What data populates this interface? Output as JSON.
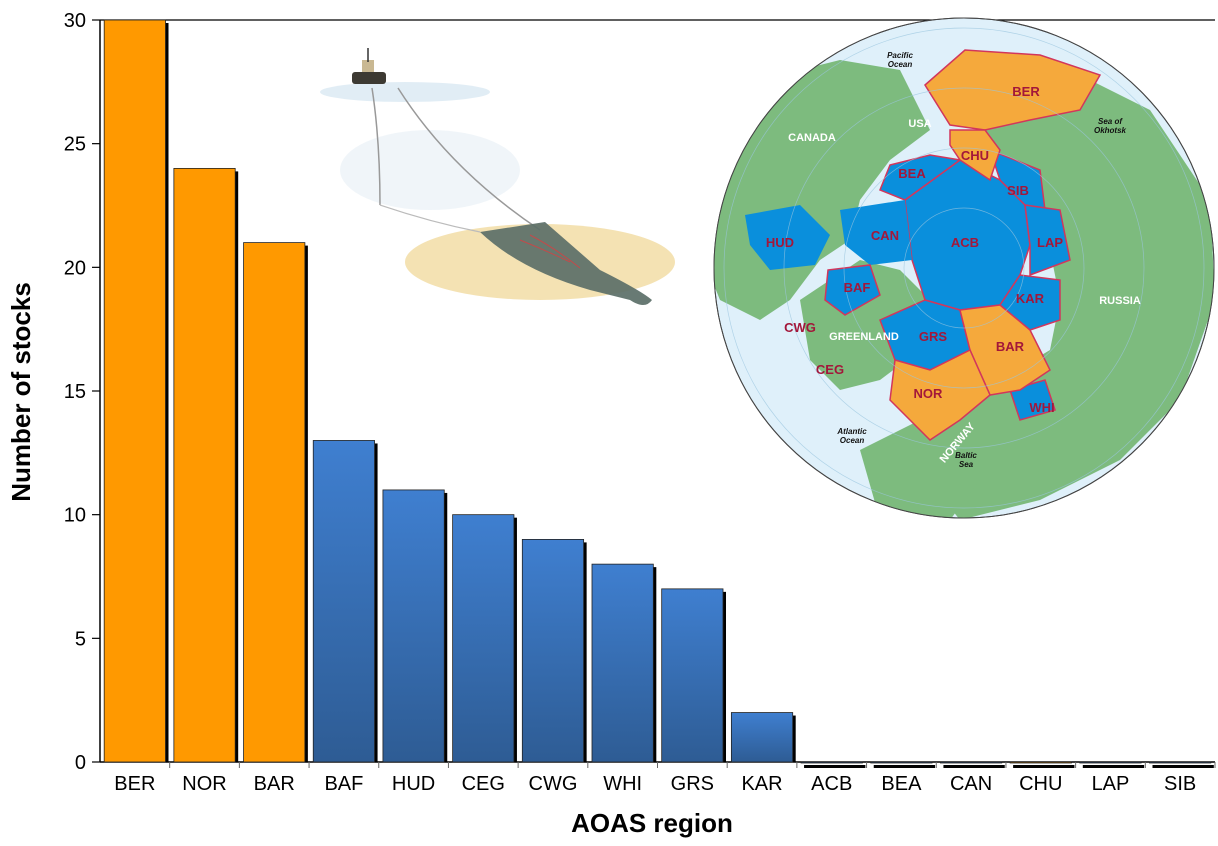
{
  "chart_data": {
    "type": "bar",
    "categories": [
      "BER",
      "NOR",
      "BAR",
      "BAF",
      "HUD",
      "CEG",
      "CWG",
      "WHI",
      "GRS",
      "KAR",
      "ACB",
      "BEA",
      "CAN",
      "CHU",
      "LAP",
      "SIB"
    ],
    "values": [
      30,
      24,
      21,
      13,
      11,
      10,
      9,
      8,
      7,
      2,
      0,
      0,
      0,
      0,
      0,
      0
    ],
    "bar_colors": [
      "#ff9900",
      "#ff9900",
      "#ff9900",
      "#3a78c8",
      "#3a78c8",
      "#3a78c8",
      "#3a78c8",
      "#3a78c8",
      "#3a78c8",
      "#3a78c8",
      "#3a78c8",
      "#3a78c8",
      "#3a78c8",
      "#ff9900",
      "#3a78c8",
      "#3a78c8"
    ],
    "xlabel": "AOAS region",
    "ylabel": "Number of stocks",
    "ylim": [
      0,
      30
    ],
    "yticks": [
      0,
      5,
      10,
      15,
      20,
      25,
      30
    ],
    "grid": false,
    "legend": "none"
  },
  "map": {
    "regions": [
      "BER",
      "CHU",
      "BEA",
      "SIB",
      "HUD",
      "CAN",
      "ACB",
      "LAP",
      "BAF",
      "KAR",
      "CWG",
      "GRS",
      "BAR",
      "CEG",
      "NOR",
      "WHI"
    ],
    "countries": [
      "CANADA",
      "USA",
      "RUSSIA",
      "GREENLAND",
      "NORWAY"
    ],
    "seas": [
      "Pacific Ocean",
      "Sea of Okhotsk",
      "Atlantic Ocean",
      "Baltic Sea"
    ]
  },
  "colors": {
    "highlight": "#ff9900",
    "default_bar": "#3a78c8",
    "ocean": "#dff0fa",
    "land": "#7dbb7e",
    "arctic": "#0a8fdc",
    "region_border": "#d2365c"
  }
}
